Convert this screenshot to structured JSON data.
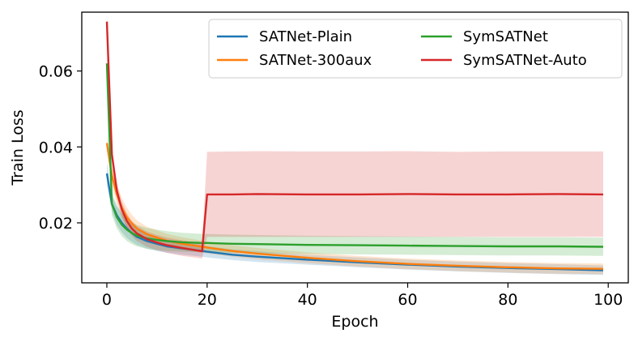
{
  "chart_data": {
    "type": "line",
    "xlabel": "Epoch",
    "ylabel": "Train Loss",
    "xlim": [
      -5,
      104
    ],
    "ylim": [
      0.0042,
      0.0755
    ],
    "x_ticks": [
      0,
      20,
      40,
      60,
      80,
      100
    ],
    "y_ticks": [
      0.02,
      0.04,
      0.06
    ],
    "x_tick_labels": [
      "0",
      "20",
      "40",
      "60",
      "80",
      "100"
    ],
    "y_tick_labels": [
      "0.02",
      "0.04",
      "0.06"
    ],
    "grid": false,
    "legend_position": "top-right",
    "series": [
      {
        "name": "SATNet-Plain",
        "color": "#1f77b4",
        "x": [
          0,
          1,
          2,
          3,
          4,
          5,
          6,
          8,
          10,
          12,
          15,
          19,
          20,
          25,
          30,
          40,
          50,
          60,
          70,
          80,
          90,
          99
        ],
        "y": [
          0.033,
          0.025,
          0.022,
          0.02,
          0.0185,
          0.0173,
          0.0163,
          0.0152,
          0.0145,
          0.0138,
          0.0133,
          0.0126,
          0.0124,
          0.0116,
          0.0111,
          0.0103,
          0.0096,
          0.009,
          0.0085,
          0.0081,
          0.0078,
          0.0075
        ],
        "lower": [
          0.03,
          0.023,
          0.0195,
          0.0175,
          0.016,
          0.015,
          0.0142,
          0.0132,
          0.0126,
          0.0121,
          0.0116,
          0.0111,
          0.0109,
          0.0102,
          0.0097,
          0.009,
          0.0083,
          0.0077,
          0.0072,
          0.0068,
          0.0065,
          0.0063
        ],
        "upper": [
          0.036,
          0.027,
          0.0245,
          0.0225,
          0.021,
          0.0196,
          0.0184,
          0.0172,
          0.0164,
          0.0155,
          0.015,
          0.0141,
          0.0139,
          0.013,
          0.0125,
          0.0116,
          0.0109,
          0.0103,
          0.0098,
          0.0094,
          0.0091,
          0.0088
        ]
      },
      {
        "name": "SATNet-300aux",
        "color": "#ff7f0e",
        "x": [
          0,
          1,
          2,
          3,
          4,
          5,
          6,
          8,
          10,
          12,
          15,
          19,
          20,
          25,
          30,
          40,
          50,
          60,
          70,
          80,
          90,
          99
        ],
        "y": [
          0.041,
          0.0325,
          0.0275,
          0.024,
          0.0215,
          0.0198,
          0.0185,
          0.017,
          0.0161,
          0.0153,
          0.0145,
          0.0137,
          0.0135,
          0.0126,
          0.0119,
          0.0108,
          0.0099,
          0.0092,
          0.0087,
          0.0083,
          0.008,
          0.0079
        ],
        "lower": [
          0.039,
          0.03,
          0.025,
          0.0215,
          0.019,
          0.0175,
          0.0163,
          0.015,
          0.0142,
          0.0135,
          0.0128,
          0.0121,
          0.0119,
          0.0111,
          0.0104,
          0.0094,
          0.0085,
          0.0078,
          0.0073,
          0.0069,
          0.0066,
          0.0065
        ],
        "upper": [
          0.043,
          0.035,
          0.03,
          0.0265,
          0.024,
          0.0221,
          0.0207,
          0.019,
          0.018,
          0.0171,
          0.0162,
          0.0153,
          0.0151,
          0.0141,
          0.0134,
          0.0122,
          0.0113,
          0.0106,
          0.0101,
          0.0097,
          0.0094,
          0.0093
        ]
      },
      {
        "name": "SymSATNet",
        "color": "#2ca02c",
        "x": [
          0,
          1,
          2,
          3,
          4,
          5,
          6,
          8,
          10,
          12,
          15,
          19,
          20,
          25,
          30,
          40,
          50,
          60,
          70,
          80,
          90,
          99
        ],
        "y": [
          0.062,
          0.025,
          0.0215,
          0.0195,
          0.0182,
          0.0173,
          0.0166,
          0.0159,
          0.0155,
          0.0152,
          0.0149,
          0.0147,
          0.0147,
          0.0145,
          0.0144,
          0.0142,
          0.0141,
          0.014,
          0.0139,
          0.0138,
          0.0138,
          0.0137
        ],
        "lower": [
          0.06,
          0.022,
          0.0185,
          0.0165,
          0.0152,
          0.0144,
          0.0138,
          0.0131,
          0.0128,
          0.0126,
          0.0124,
          0.0123,
          0.0123,
          0.0121,
          0.012,
          0.0118,
          0.0117,
          0.0116,
          0.0115,
          0.0114,
          0.0114,
          0.0113
        ],
        "upper": [
          0.064,
          0.028,
          0.0245,
          0.0225,
          0.0212,
          0.0202,
          0.0194,
          0.0187,
          0.0182,
          0.0178,
          0.0174,
          0.0171,
          0.0171,
          0.0169,
          0.0168,
          0.0166,
          0.0165,
          0.0164,
          0.0163,
          0.0162,
          0.0162,
          0.0161
        ]
      },
      {
        "name": "SymSATNet-Auto",
        "color": "#d62728",
        "x": [
          0,
          1,
          2,
          3,
          4,
          5,
          6,
          8,
          10,
          12,
          15,
          19,
          20,
          25,
          30,
          40,
          50,
          60,
          70,
          80,
          90,
          99
        ],
        "y": [
          0.073,
          0.038,
          0.0285,
          0.0235,
          0.0205,
          0.0185,
          0.0172,
          0.0157,
          0.0148,
          0.0141,
          0.0134,
          0.0125,
          0.0275,
          0.0275,
          0.0276,
          0.0275,
          0.0275,
          0.0276,
          0.0275,
          0.0275,
          0.0276,
          0.0275
        ],
        "lower": [
          0.071,
          0.036,
          0.0265,
          0.0215,
          0.0185,
          0.0165,
          0.0152,
          0.0137,
          0.0128,
          0.0121,
          0.0113,
          0.0106,
          0.0163,
          0.0163,
          0.0163,
          0.0163,
          0.0163,
          0.0163,
          0.0163,
          0.0163,
          0.0163,
          0.0163
        ],
        "upper": [
          0.075,
          0.04,
          0.0305,
          0.0255,
          0.0225,
          0.0205,
          0.0192,
          0.0177,
          0.0168,
          0.0161,
          0.0154,
          0.0145,
          0.0387,
          0.0388,
          0.0389,
          0.0388,
          0.0388,
          0.0389,
          0.0387,
          0.0388,
          0.0388,
          0.0388
        ]
      }
    ]
  }
}
